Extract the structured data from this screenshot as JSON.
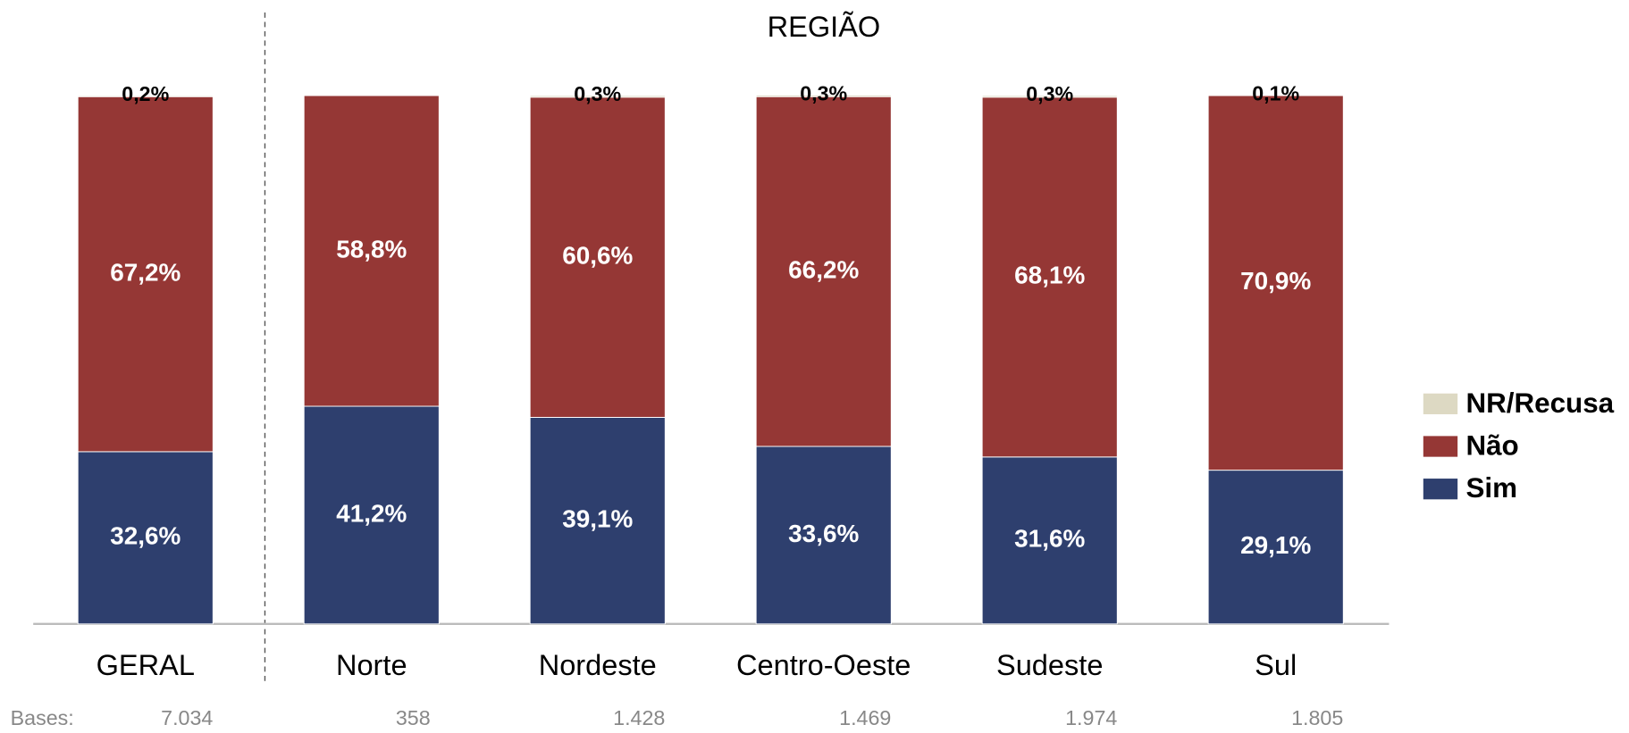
{
  "chart_data": {
    "type": "stacked_bar",
    "title": "REGIÃO",
    "categories": [
      "GERAL",
      "Norte",
      "Nordeste",
      "Centro-Oeste",
      "Sudeste",
      "Sul"
    ],
    "ylim": [
      0,
      100
    ],
    "series": [
      {
        "name": "Sim",
        "color": "#2e3f6e",
        "values": [
          32.6,
          41.2,
          39.1,
          33.6,
          31.6,
          29.1
        ],
        "value_labels": [
          "32,6%",
          "41,2%",
          "39,1%",
          "33,6%",
          "31,6%",
          "29,1%"
        ]
      },
      {
        "name": "Não",
        "color": "#953735",
        "values": [
          67.2,
          58.8,
          60.6,
          66.2,
          68.1,
          70.9
        ],
        "value_labels": [
          "67,2%",
          "58,8%",
          "60,6%",
          "66,2%",
          "68,1%",
          "70,9%"
        ]
      },
      {
        "name": "NR/Recusa",
        "color": "#ddd9c3",
        "values": [
          0.2,
          0,
          0.3,
          0.3,
          0.3,
          0.1
        ],
        "value_labels": [
          "0,2%",
          null,
          "0,3%",
          "0,3%",
          "0,3%",
          "0,1%"
        ]
      }
    ],
    "bases_label": "Bases:",
    "bases": [
      "7.034",
      "358",
      "1.428",
      "1.469",
      "1.974",
      "1.805"
    ]
  }
}
